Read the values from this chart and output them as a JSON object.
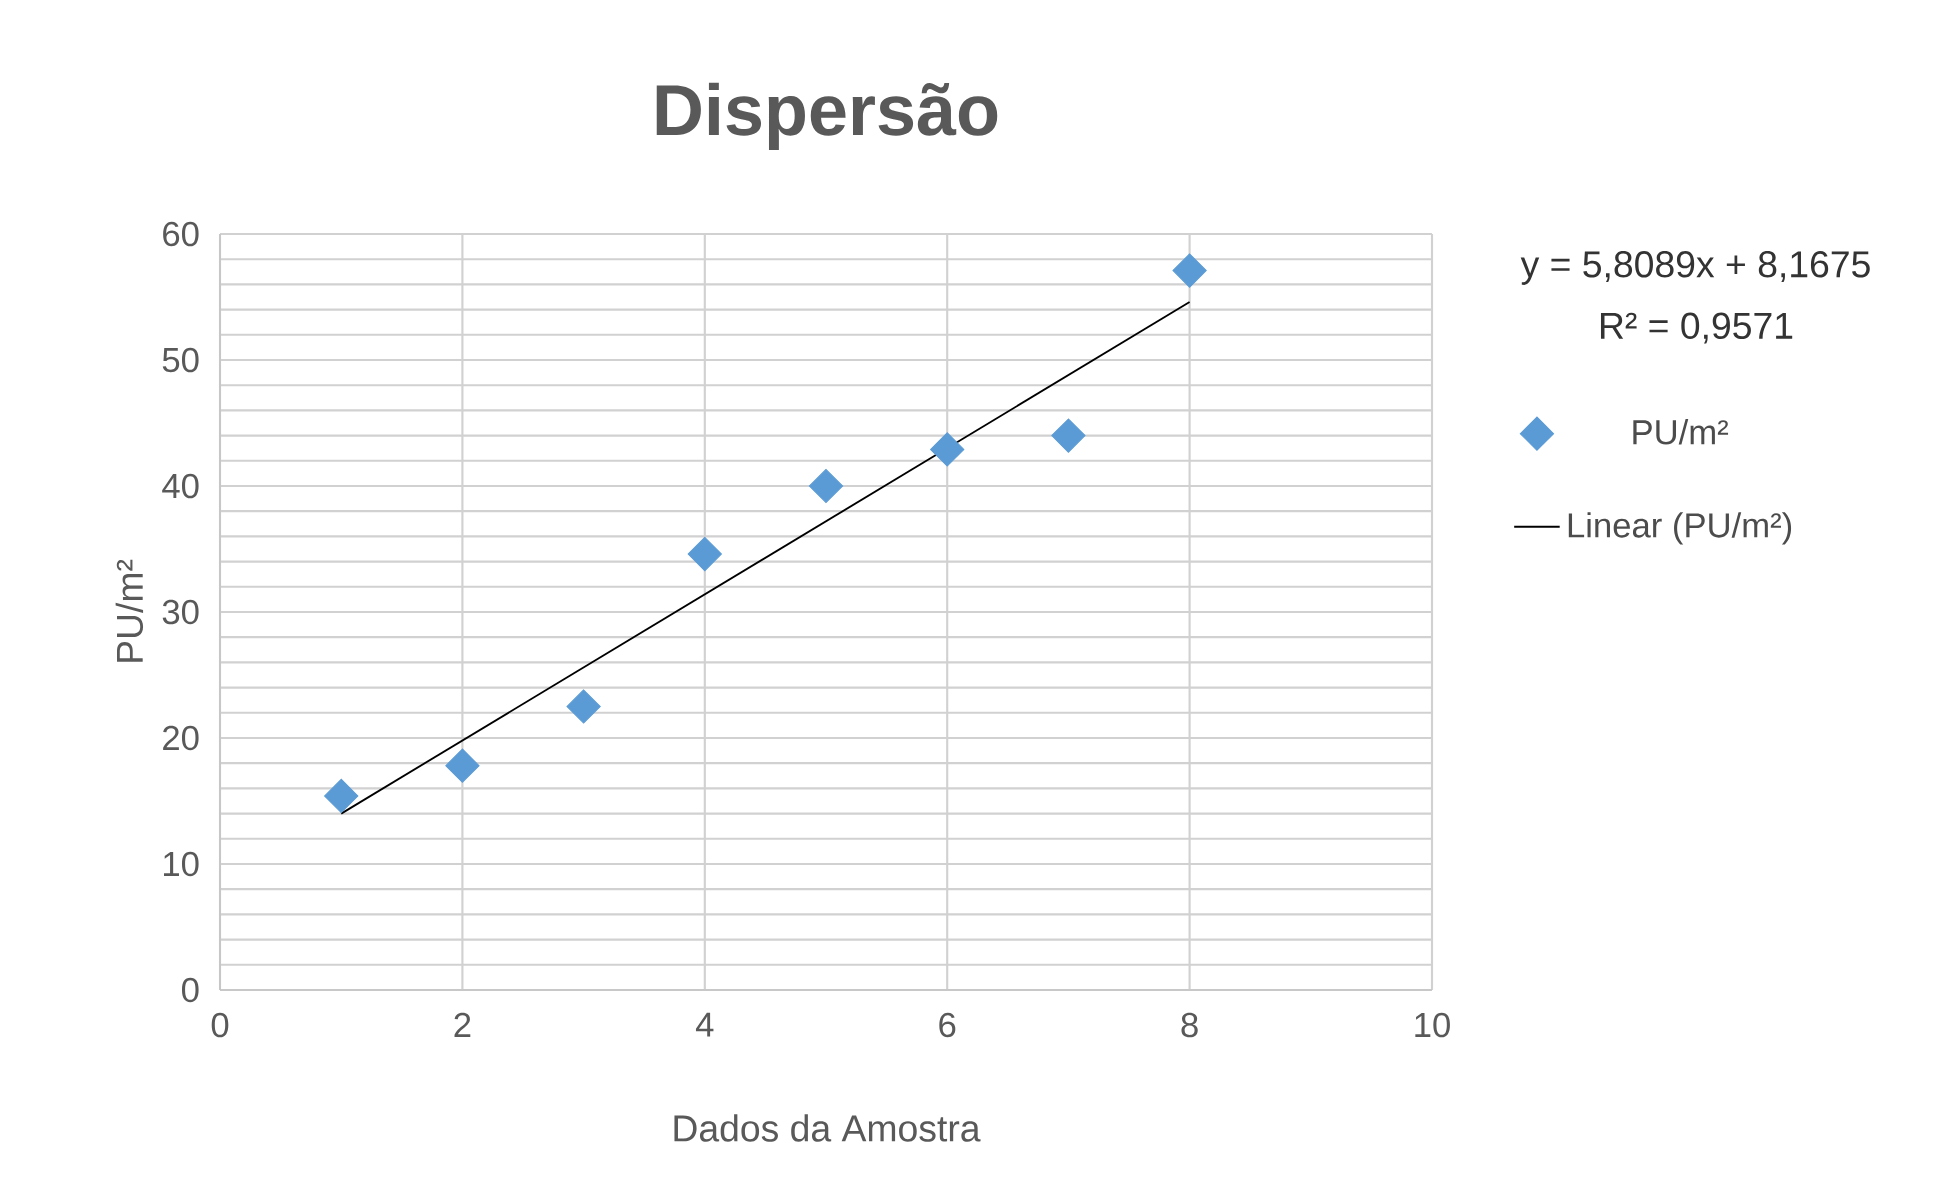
{
  "chart_data": {
    "type": "scatter",
    "title": "Dispersão",
    "xlabel": "Dados da Amostra",
    "ylabel": "PU/m²",
    "xlim": [
      0,
      10
    ],
    "xticks": [
      0,
      2,
      4,
      6,
      8,
      10
    ],
    "ylim": [
      0,
      60
    ],
    "yticks": [
      0,
      10,
      20,
      30,
      40,
      50,
      60
    ],
    "grid": true,
    "legend": "right",
    "series": [
      {
        "name": "PU/m²",
        "marker": "diamond",
        "color": "#5b9bd5",
        "x": [
          1,
          2,
          3,
          4,
          5,
          6,
          7,
          8
        ],
        "values": [
          15.4,
          17.8,
          22.5,
          34.6,
          40,
          42.9,
          44,
          57.1
        ]
      },
      {
        "name": "Linear (PU/m²)",
        "type": "line",
        "marker": "none",
        "color": "#000000",
        "x": [
          1,
          8
        ],
        "values": [
          14,
          54.6
        ]
      }
    ],
    "annotations": [
      "y = 5,8089x + 8,1675",
      "R² = 0,9571"
    ]
  }
}
